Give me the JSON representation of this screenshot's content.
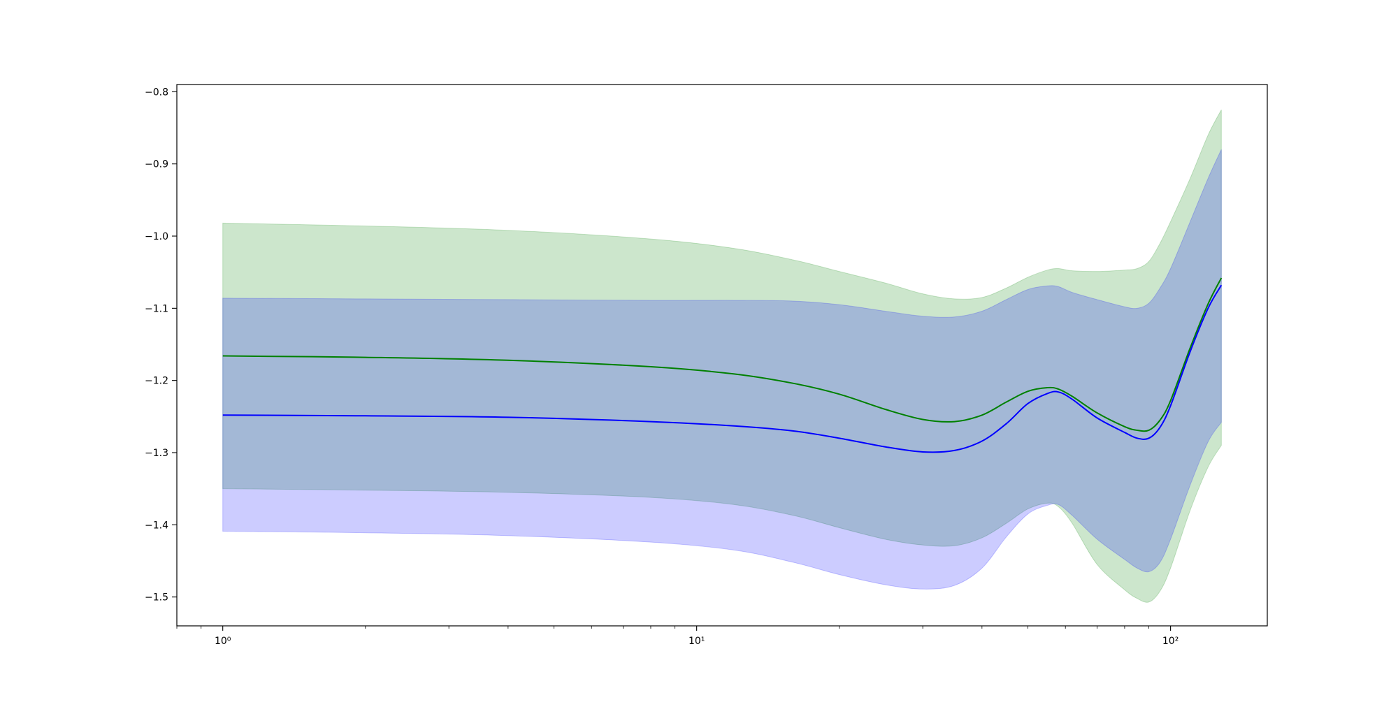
{
  "chart_data": {
    "type": "area",
    "title": "",
    "xlabel": "",
    "ylabel": "",
    "xscale": "log",
    "xlim": [
      0.8,
      160
    ],
    "ylim": [
      -1.54,
      -0.79
    ],
    "grid": false,
    "legend": "none",
    "x_ticks": [
      {
        "value": 1,
        "label": "10⁰"
      },
      {
        "value": 10,
        "label": "10¹"
      },
      {
        "value": 100,
        "label": "10²"
      }
    ],
    "y_ticks": [
      {
        "value": -0.8,
        "label": "−0.8"
      },
      {
        "value": -0.9,
        "label": "−0.9"
      },
      {
        "value": -1.0,
        "label": "−1.0"
      },
      {
        "value": -1.1,
        "label": "−1.1"
      },
      {
        "value": -1.2,
        "label": "−1.2"
      },
      {
        "value": -1.3,
        "label": "−1.3"
      },
      {
        "value": -1.4,
        "label": "−1.4"
      },
      {
        "value": -1.5,
        "label": "−1.5"
      }
    ],
    "x": [
      1,
      2,
      4,
      8,
      12,
      16,
      20,
      25,
      30,
      35,
      40,
      45,
      50,
      55,
      58,
      62,
      70,
      80,
      85,
      90,
      95,
      100,
      110,
      120,
      128
    ],
    "series": [
      {
        "color": "#008000",
        "band_color": "#008000",
        "band_opacity": 0.2,
        "mean": [
          -1.166,
          -1.168,
          -1.172,
          -1.181,
          -1.191,
          -1.204,
          -1.219,
          -1.24,
          -1.254,
          -1.257,
          -1.248,
          -1.23,
          -1.215,
          -1.21,
          -1.212,
          -1.222,
          -1.245,
          -1.264,
          -1.269,
          -1.269,
          -1.255,
          -1.228,
          -1.155,
          -1.094,
          -1.058
        ],
        "upper": [
          -0.982,
          -0.986,
          -0.992,
          -1.004,
          -1.017,
          -1.033,
          -1.049,
          -1.065,
          -1.08,
          -1.087,
          -1.085,
          -1.072,
          -1.057,
          -1.047,
          -1.045,
          -1.048,
          -1.049,
          -1.047,
          -1.045,
          -1.035,
          -1.01,
          -0.98,
          -0.92,
          -0.86,
          -0.825
        ],
        "lower": [
          -1.35,
          -1.352,
          -1.355,
          -1.362,
          -1.372,
          -1.387,
          -1.404,
          -1.42,
          -1.428,
          -1.429,
          -1.418,
          -1.398,
          -1.378,
          -1.37,
          -1.375,
          -1.398,
          -1.455,
          -1.49,
          -1.502,
          -1.507,
          -1.492,
          -1.46,
          -1.38,
          -1.32,
          -1.29
        ]
      },
      {
        "color": "#0000ff",
        "band_color": "#0000ff",
        "band_opacity": 0.2,
        "mean": [
          -1.248,
          -1.249,
          -1.251,
          -1.257,
          -1.263,
          -1.27,
          -1.28,
          -1.292,
          -1.299,
          -1.297,
          -1.284,
          -1.26,
          -1.232,
          -1.218,
          -1.216,
          -1.226,
          -1.252,
          -1.272,
          -1.28,
          -1.28,
          -1.265,
          -1.235,
          -1.16,
          -1.1,
          -1.068
        ],
        "upper": [
          -1.086,
          -1.087,
          -1.088,
          -1.089,
          -1.089,
          -1.09,
          -1.095,
          -1.104,
          -1.111,
          -1.112,
          -1.104,
          -1.088,
          -1.074,
          -1.069,
          -1.07,
          -1.078,
          -1.088,
          -1.098,
          -1.1,
          -1.093,
          -1.072,
          -1.045,
          -0.98,
          -0.92,
          -0.88
        ],
        "lower": [
          -1.409,
          -1.411,
          -1.415,
          -1.424,
          -1.435,
          -1.452,
          -1.469,
          -1.483,
          -1.489,
          -1.484,
          -1.46,
          -1.417,
          -1.385,
          -1.373,
          -1.372,
          -1.387,
          -1.42,
          -1.448,
          -1.46,
          -1.465,
          -1.452,
          -1.42,
          -1.345,
          -1.285,
          -1.258
        ]
      }
    ]
  }
}
